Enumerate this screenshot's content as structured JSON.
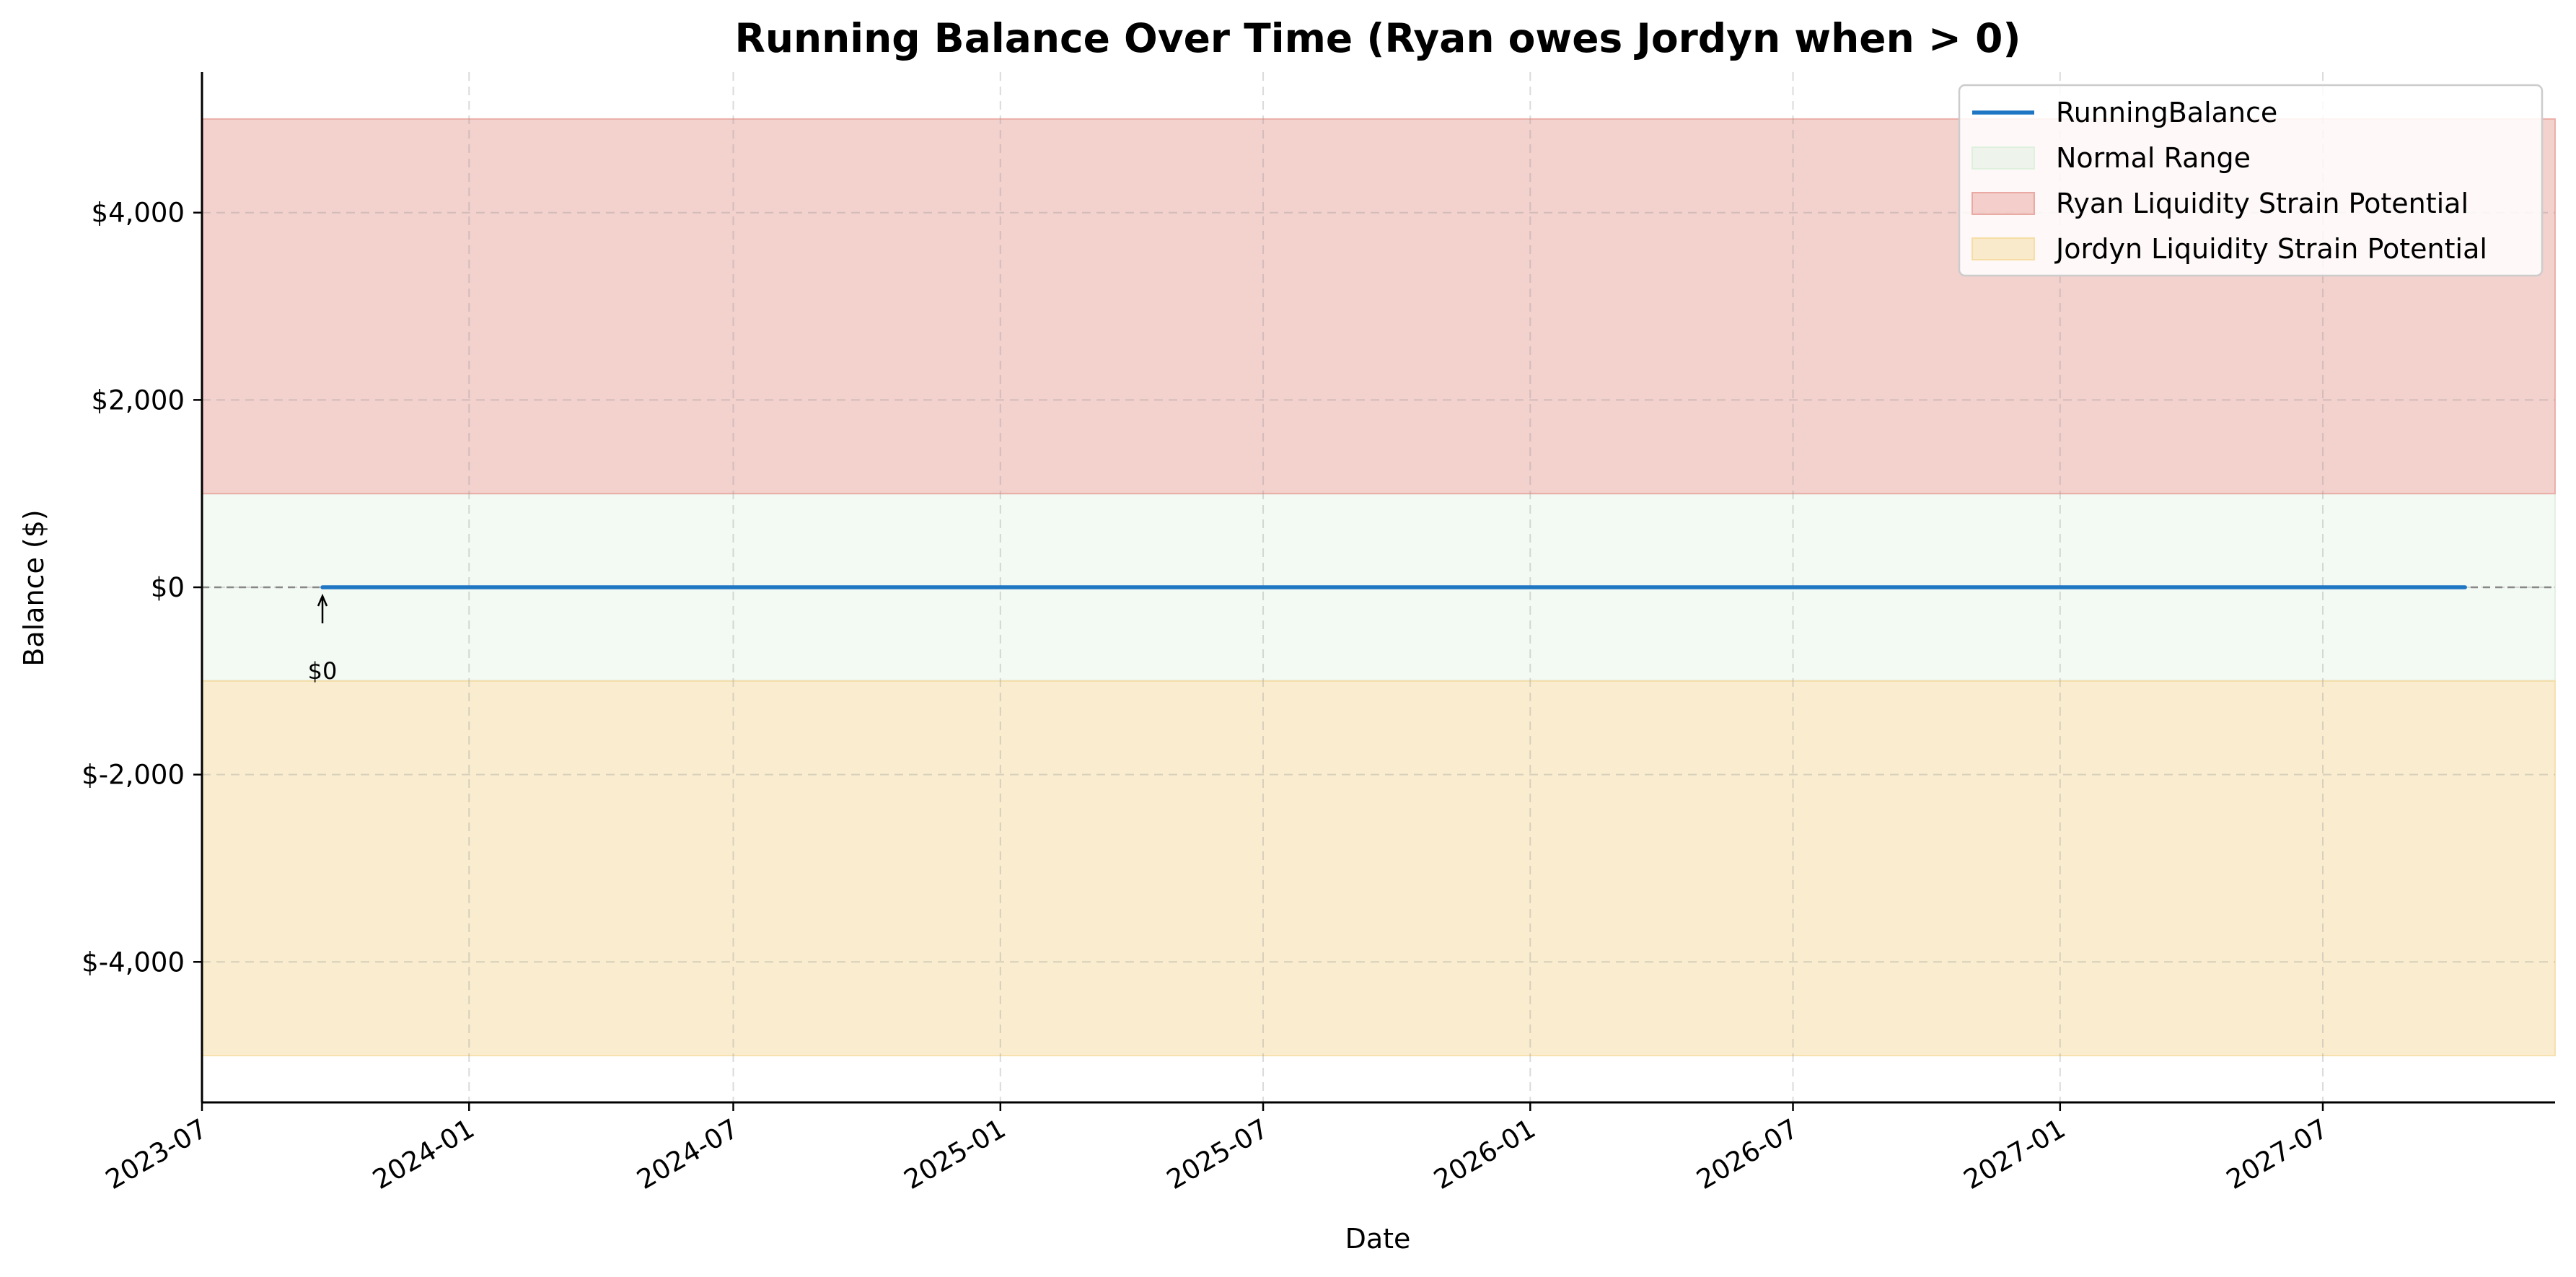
{
  "chart_data": {
    "type": "line",
    "title": "Running Balance Over Time (Ryan owes Jordyn when > 0)",
    "xlabel": "Date",
    "ylabel": "Balance ($)",
    "xlim": [
      "2023-07-01",
      "2027-12-08"
    ],
    "ylim": [
      -5500,
      5500
    ],
    "x_ticks": [
      "2023-07",
      "2024-01",
      "2024-07",
      "2025-01",
      "2025-07",
      "2026-01",
      "2026-07",
      "2027-01",
      "2027-07"
    ],
    "x_tick_dates": [
      "2023-07-01",
      "2024-01-01",
      "2024-07-01",
      "2025-01-01",
      "2025-07-01",
      "2026-01-01",
      "2026-07-01",
      "2027-01-01",
      "2027-07-01"
    ],
    "y_ticks": [
      {
        "value": 4000,
        "label": "$4,000"
      },
      {
        "value": 2000,
        "label": "$2,000"
      },
      {
        "value": 0,
        "label": "$0"
      },
      {
        "value": -2000,
        "label": "$-2,000"
      },
      {
        "value": -4000,
        "label": "$-4,000"
      }
    ],
    "grid": true,
    "legend_position": "top-right",
    "zero_reference_line": true,
    "bands": [
      {
        "name": "Normal Range",
        "y0": -1000,
        "y1": 1000,
        "color": "#dcefdc"
      },
      {
        "name": "Ryan Liquidity Strain Potential",
        "y0": 1000,
        "y1": 5000,
        "color": "#e8a39b"
      },
      {
        "name": "Jordyn Liquidity Strain Potential",
        "y0": -5000,
        "y1": -1000,
        "color": "#f5dba0"
      }
    ],
    "series": [
      {
        "name": "RunningBalance",
        "color": "#1f77c4",
        "points": [
          {
            "x": "2023-09-22",
            "y": 0
          },
          {
            "x": "2027-10-07",
            "y": 0
          }
        ]
      }
    ],
    "annotations": [
      {
        "text": "$0",
        "x": "2023-09-22",
        "y": 0
      }
    ]
  }
}
